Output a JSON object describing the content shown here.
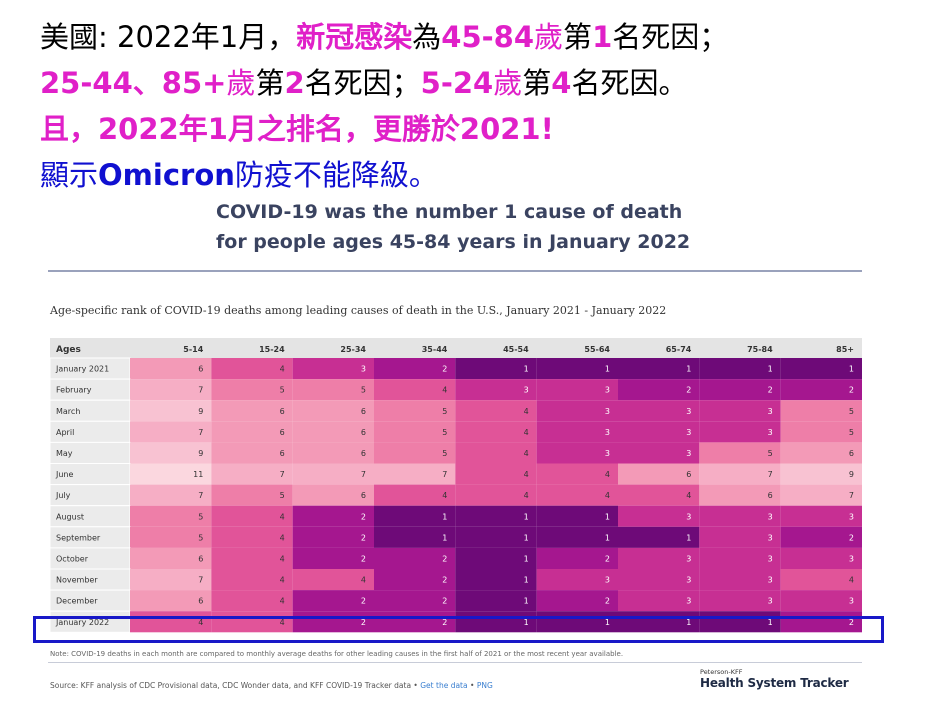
{
  "headline": {
    "l1": [
      "美國: 2022年1月，",
      "新冠感染",
      "為",
      "45-84",
      "歲",
      "第",
      "1",
      "名死因；"
    ],
    "l2": [
      "25-44",
      "、",
      "85+",
      "歲",
      "第",
      "2",
      "名死因；",
      "5-24",
      "歲",
      "第",
      "4",
      "名死因。"
    ],
    "l3": "且，2022年1月之排名，更勝於2021!",
    "l4": [
      "顯示",
      "Omicron",
      "防疫不能降級。"
    ]
  },
  "chart_title": {
    "line1": "COVID-19 was the number 1 cause of death",
    "line2": "for people ages 45-84 years in January 2022"
  },
  "subtitle": "Age-specific rank of COVID-19 deaths among leading causes of death in the U.S., January 2021 - January 2022",
  "note": "Note: COVID-19 deaths in each month are compared to monthly average deaths for other leading causes in the first half of 2021 or the most recent year available.",
  "source": {
    "text": "Source: KFF analysis of CDC Provisional data, CDC Wonder data, and KFF COVID-19 Tracker data •",
    "get_data": "Get the data",
    "sep": "•",
    "png": "PNG"
  },
  "brand": {
    "small": "Peterson-KFF",
    "big": "Health System Tracker"
  },
  "colors": {
    "rank1": "#6e0a78",
    "rank2": "#a5178f",
    "rank3": "#c72f93",
    "rank4": "#e15499",
    "rank5": "#ee7ea8",
    "rank6": "#f39ab7",
    "rank7": "#f6aec5",
    "rank9": "#f8c2d2",
    "rank11": "#fbd7df",
    "header_bg": "#e4e4e4",
    "label_bg": "#ebebeb",
    "highlight": "#1818c8"
  },
  "chart_data": {
    "type": "heatmap",
    "title": "Age-specific rank of COVID-19 deaths among leading causes of death in the U.S., January 2021 - January 2022",
    "corner_label": "Ages",
    "columns": [
      "5-14",
      "15-24",
      "25-34",
      "35-44",
      "45-54",
      "55-64",
      "65-74",
      "75-84",
      "85+"
    ],
    "rows": [
      "January 2021",
      "February",
      "March",
      "April",
      "May",
      "June",
      "July",
      "August",
      "September",
      "October",
      "November",
      "December",
      "January 2022"
    ],
    "values": [
      [
        6,
        4,
        3,
        2,
        1,
        1,
        1,
        1,
        1
      ],
      [
        7,
        5,
        5,
        4,
        3,
        3,
        2,
        2,
        2
      ],
      [
        9,
        6,
        6,
        5,
        4,
        3,
        3,
        3,
        5
      ],
      [
        7,
        6,
        6,
        5,
        4,
        3,
        3,
        3,
        5
      ],
      [
        9,
        6,
        6,
        5,
        4,
        3,
        3,
        5,
        6
      ],
      [
        11,
        7,
        7,
        7,
        4,
        4,
        6,
        7,
        9
      ],
      [
        7,
        5,
        6,
        4,
        4,
        4,
        4,
        6,
        7
      ],
      [
        5,
        4,
        2,
        1,
        1,
        1,
        3,
        3,
        3
      ],
      [
        5,
        4,
        2,
        1,
        1,
        1,
        1,
        3,
        2
      ],
      [
        6,
        4,
        2,
        2,
        1,
        2,
        3,
        3,
        3
      ],
      [
        7,
        4,
        4,
        2,
        1,
        3,
        3,
        3,
        4
      ],
      [
        6,
        4,
        2,
        2,
        1,
        2,
        3,
        3,
        3
      ],
      [
        4,
        4,
        2,
        2,
        1,
        1,
        1,
        1,
        2
      ]
    ],
    "highlighted_row": "January 2022"
  }
}
